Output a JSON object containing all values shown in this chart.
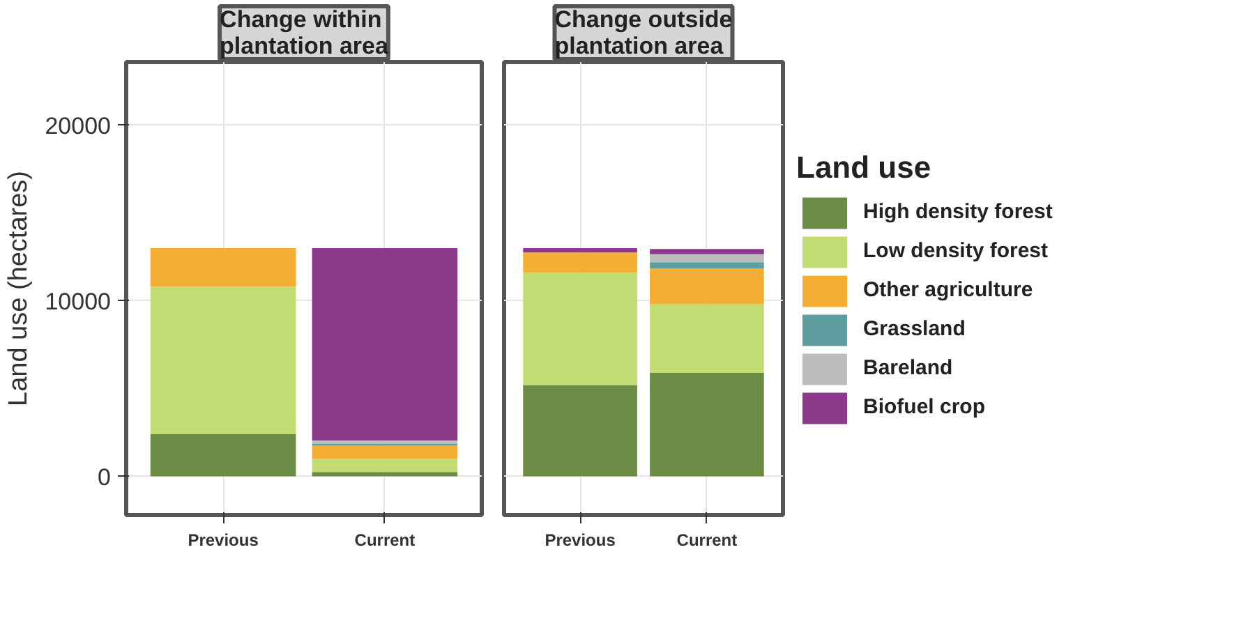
{
  "chart_data": [
    {
      "type": "bar",
      "title": "Change within\nplantation area",
      "ylabel": "Land use (hectares)",
      "categories": [
        "Previous",
        "Current"
      ],
      "stacked": true,
      "ylim": [
        -2200,
        23600
      ],
      "yticks": [
        0,
        10000,
        20000
      ],
      "grid": true,
      "legend": false,
      "series": [
        {
          "color": "#6a8c44",
          "values": [
            2400,
            250
          ]
        },
        {
          "color": "#c2dc74",
          "values": [
            8400,
            750
          ]
        },
        {
          "color": "#f3ae33",
          "values": [
            2200,
            750
          ]
        },
        {
          "color": "#5f9ea0",
          "values": [
            0,
            100
          ]
        },
        {
          "color": "#bdbdbd",
          "values": [
            0,
            200
          ]
        },
        {
          "color": "#8b3a8b",
          "values": [
            0,
            10950
          ]
        }
      ]
    },
    {
      "type": "bar",
      "title": "Change outside\nplantation area",
      "categories": [
        "Previous",
        "Current"
      ],
      "stacked": true,
      "ylim": [
        -2200,
        23600
      ],
      "yticks": [
        0,
        10000,
        20000
      ],
      "grid": true,
      "tick_labels": "x",
      "legend": "right",
      "legend_title": "Land use",
      "series": [
        {
          "name": "High density forest",
          "color": "#6a8c44",
          "values": [
            5200,
            5900
          ]
        },
        {
          "name": "Low density forest",
          "color": "#c2dc74",
          "values": [
            6400,
            3900
          ]
        },
        {
          "name": "Other agriculture",
          "color": "#f3ae33",
          "values": [
            1150,
            2050
          ]
        },
        {
          "name": "Grassland",
          "color": "#5f9ea0",
          "values": [
            0,
            350
          ]
        },
        {
          "name": "Bareland",
          "color": "#bdbdbd",
          "values": [
            0,
            450
          ]
        },
        {
          "name": "Biofuel crop",
          "color": "#8b3a8b",
          "values": [
            250,
            300
          ]
        }
      ]
    }
  ]
}
